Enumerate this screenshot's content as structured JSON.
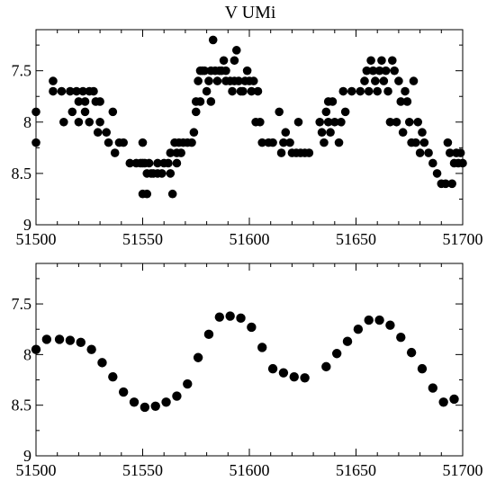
{
  "title": "V UMi",
  "chart_data": [
    {
      "type": "scatter",
      "title": "V UMi",
      "xlim": [
        51500,
        51700
      ],
      "ylim": [
        9,
        7.1
      ],
      "y_inverted": true,
      "x_ticks": [
        51500,
        51550,
        51600,
        51650,
        51700
      ],
      "x_tick_labels": [
        "51500",
        "51550",
        "51600",
        "51650",
        "51700"
      ],
      "y_ticks": [
        7.5,
        8,
        8.5,
        9
      ],
      "y_tick_labels": [
        "7.5",
        "8",
        "8.5",
        "9"
      ],
      "grid": false,
      "points": [
        [
          51500,
          7.9
        ],
        [
          51500,
          8.2
        ],
        [
          51508,
          7.6
        ],
        [
          51508,
          7.7
        ],
        [
          51512,
          7.7
        ],
        [
          51513,
          8.0
        ],
        [
          51516,
          7.7
        ],
        [
          51517,
          7.9
        ],
        [
          51519,
          7.7
        ],
        [
          51520,
          7.8
        ],
        [
          51520,
          8.0
        ],
        [
          51522,
          7.7
        ],
        [
          51523,
          7.8
        ],
        [
          51523,
          7.9
        ],
        [
          51525,
          7.7
        ],
        [
          51525,
          8.0
        ],
        [
          51527,
          7.7
        ],
        [
          51528,
          7.8
        ],
        [
          51529,
          8.1
        ],
        [
          51530,
          7.8
        ],
        [
          51530,
          8.0
        ],
        [
          51533,
          8.1
        ],
        [
          51534,
          8.2
        ],
        [
          51536,
          7.9
        ],
        [
          51537,
          8.3
        ],
        [
          51539,
          8.2
        ],
        [
          51541,
          8.2
        ],
        [
          51544,
          8.4
        ],
        [
          51547,
          8.4
        ],
        [
          51549,
          8.4
        ],
        [
          51550,
          8.2
        ],
        [
          51550,
          8.4
        ],
        [
          51550,
          8.7
        ],
        [
          51551,
          8.4
        ],
        [
          51552,
          8.5
        ],
        [
          51552,
          8.7
        ],
        [
          51553,
          8.4
        ],
        [
          51554,
          8.5
        ],
        [
          51555,
          8.5
        ],
        [
          51557,
          8.4
        ],
        [
          51557,
          8.5
        ],
        [
          51559,
          8.5
        ],
        [
          51560,
          8.4
        ],
        [
          51562,
          8.4
        ],
        [
          51563,
          8.3
        ],
        [
          51563,
          8.5
        ],
        [
          51564,
          8.7
        ],
        [
          51565,
          8.2
        ],
        [
          51566,
          8.3
        ],
        [
          51566,
          8.4
        ],
        [
          51567,
          8.2
        ],
        [
          51568,
          8.3
        ],
        [
          51569,
          8.2
        ],
        [
          51571,
          8.2
        ],
        [
          51573,
          8.2
        ],
        [
          51574,
          8.1
        ],
        [
          51575,
          7.8
        ],
        [
          51575,
          7.9
        ],
        [
          51576,
          7.6
        ],
        [
          51577,
          7.5
        ],
        [
          51577,
          7.8
        ],
        [
          51578,
          7.5
        ],
        [
          51579,
          7.5
        ],
        [
          51580,
          7.7
        ],
        [
          51581,
          7.6
        ],
        [
          51582,
          7.5
        ],
        [
          51582,
          7.8
        ],
        [
          51583,
          7.2
        ],
        [
          51584,
          7.5
        ],
        [
          51585,
          7.6
        ],
        [
          51586,
          7.5
        ],
        [
          51587,
          7.5
        ],
        [
          51588,
          7.4
        ],
        [
          51589,
          7.5
        ],
        [
          51589,
          7.6
        ],
        [
          51591,
          7.6
        ],
        [
          51592,
          7.7
        ],
        [
          51593,
          7.4
        ],
        [
          51593,
          7.6
        ],
        [
          51594,
          7.3
        ],
        [
          51595,
          7.6
        ],
        [
          51596,
          7.7
        ],
        [
          51597,
          7.7
        ],
        [
          51598,
          7.6
        ],
        [
          51599,
          7.5
        ],
        [
          51600,
          7.6
        ],
        [
          51601,
          7.7
        ],
        [
          51602,
          7.6
        ],
        [
          51603,
          8.0
        ],
        [
          51604,
          7.7
        ],
        [
          51605,
          8.0
        ],
        [
          51606,
          8.2
        ],
        [
          51609,
          8.2
        ],
        [
          51611,
          8.2
        ],
        [
          51614,
          7.9
        ],
        [
          51615,
          8.3
        ],
        [
          51616,
          8.2
        ],
        [
          51617,
          8.1
        ],
        [
          51619,
          8.2
        ],
        [
          51620,
          8.3
        ],
        [
          51622,
          8.3
        ],
        [
          51623,
          8.0
        ],
        [
          51624,
          8.3
        ],
        [
          51626,
          8.3
        ],
        [
          51628,
          8.3
        ],
        [
          51633,
          8.0
        ],
        [
          51634,
          8.1
        ],
        [
          51635,
          8.2
        ],
        [
          51636,
          7.9
        ],
        [
          51637,
          7.8
        ],
        [
          51637,
          8.0
        ],
        [
          51638,
          8.1
        ],
        [
          51639,
          7.8
        ],
        [
          51640,
          8.0
        ],
        [
          51642,
          8.2
        ],
        [
          51643,
          8.0
        ],
        [
          51644,
          7.7
        ],
        [
          51645,
          7.9
        ],
        [
          51648,
          7.7
        ],
        [
          51652,
          7.7
        ],
        [
          51654,
          7.6
        ],
        [
          51655,
          7.5
        ],
        [
          51656,
          7.7
        ],
        [
          51657,
          7.4
        ],
        [
          51658,
          7.5
        ],
        [
          51659,
          7.6
        ],
        [
          51660,
          7.7
        ],
        [
          51661,
          7.5
        ],
        [
          51662,
          7.4
        ],
        [
          51663,
          7.6
        ],
        [
          51664,
          7.5
        ],
        [
          51665,
          7.7
        ],
        [
          51666,
          8.0
        ],
        [
          51667,
          7.4
        ],
        [
          51668,
          7.5
        ],
        [
          51669,
          8.0
        ],
        [
          51670,
          7.6
        ],
        [
          51671,
          7.8
        ],
        [
          51672,
          8.1
        ],
        [
          51673,
          7.7
        ],
        [
          51674,
          7.8
        ],
        [
          51675,
          8.0
        ],
        [
          51676,
          8.2
        ],
        [
          51677,
          7.6
        ],
        [
          51678,
          8.2
        ],
        [
          51679,
          8.0
        ],
        [
          51680,
          8.3
        ],
        [
          51681,
          8.1
        ],
        [
          51682,
          8.2
        ],
        [
          51684,
          8.3
        ],
        [
          51686,
          8.4
        ],
        [
          51688,
          8.5
        ],
        [
          51690,
          8.6
        ],
        [
          51692,
          8.6
        ],
        [
          51693,
          8.2
        ],
        [
          51694,
          8.3
        ],
        [
          51695,
          8.6
        ],
        [
          51696,
          8.4
        ],
        [
          51697,
          8.3
        ],
        [
          51698,
          8.4
        ],
        [
          51699,
          8.3
        ],
        [
          51700,
          8.4
        ]
      ]
    },
    {
      "type": "scatter",
      "xlim": [
        51500,
        51700
      ],
      "ylim": [
        9,
        7.1
      ],
      "y_inverted": true,
      "x_ticks": [
        51500,
        51550,
        51600,
        51650,
        51700
      ],
      "x_tick_labels": [
        "51500",
        "51550",
        "51600",
        "51650",
        "51700"
      ],
      "y_ticks": [
        7.5,
        8,
        8.5,
        9
      ],
      "y_tick_labels": [
        "7.5",
        "8",
        "8.5",
        "9"
      ],
      "grid": false,
      "points": [
        [
          51500,
          7.95
        ],
        [
          51505,
          7.85
        ],
        [
          51511,
          7.85
        ],
        [
          51516,
          7.86
        ],
        [
          51521,
          7.88
        ],
        [
          51526,
          7.95
        ],
        [
          51531,
          8.08
        ],
        [
          51536,
          8.22
        ],
        [
          51541,
          8.37
        ],
        [
          51546,
          8.47
        ],
        [
          51551,
          8.52
        ],
        [
          51556,
          8.51
        ],
        [
          51561,
          8.47
        ],
        [
          51566,
          8.41
        ],
        [
          51571,
          8.29
        ],
        [
          51576,
          8.03
        ],
        [
          51581,
          7.8
        ],
        [
          51586,
          7.63
        ],
        [
          51591,
          7.62
        ],
        [
          51596,
          7.64
        ],
        [
          51601,
          7.73
        ],
        [
          51606,
          7.93
        ],
        [
          51611,
          8.14
        ],
        [
          51616,
          8.18
        ],
        [
          51621,
          8.22
        ],
        [
          51626,
          8.23
        ],
        [
          51636,
          8.12
        ],
        [
          51641,
          7.99
        ],
        [
          51646,
          7.87
        ],
        [
          51651,
          7.75
        ],
        [
          51656,
          7.66
        ],
        [
          51661,
          7.66
        ],
        [
          51666,
          7.71
        ],
        [
          51671,
          7.83
        ],
        [
          51676,
          7.98
        ],
        [
          51681,
          8.14
        ],
        [
          51686,
          8.33
        ],
        [
          51691,
          8.47
        ],
        [
          51696,
          8.44
        ]
      ]
    }
  ]
}
